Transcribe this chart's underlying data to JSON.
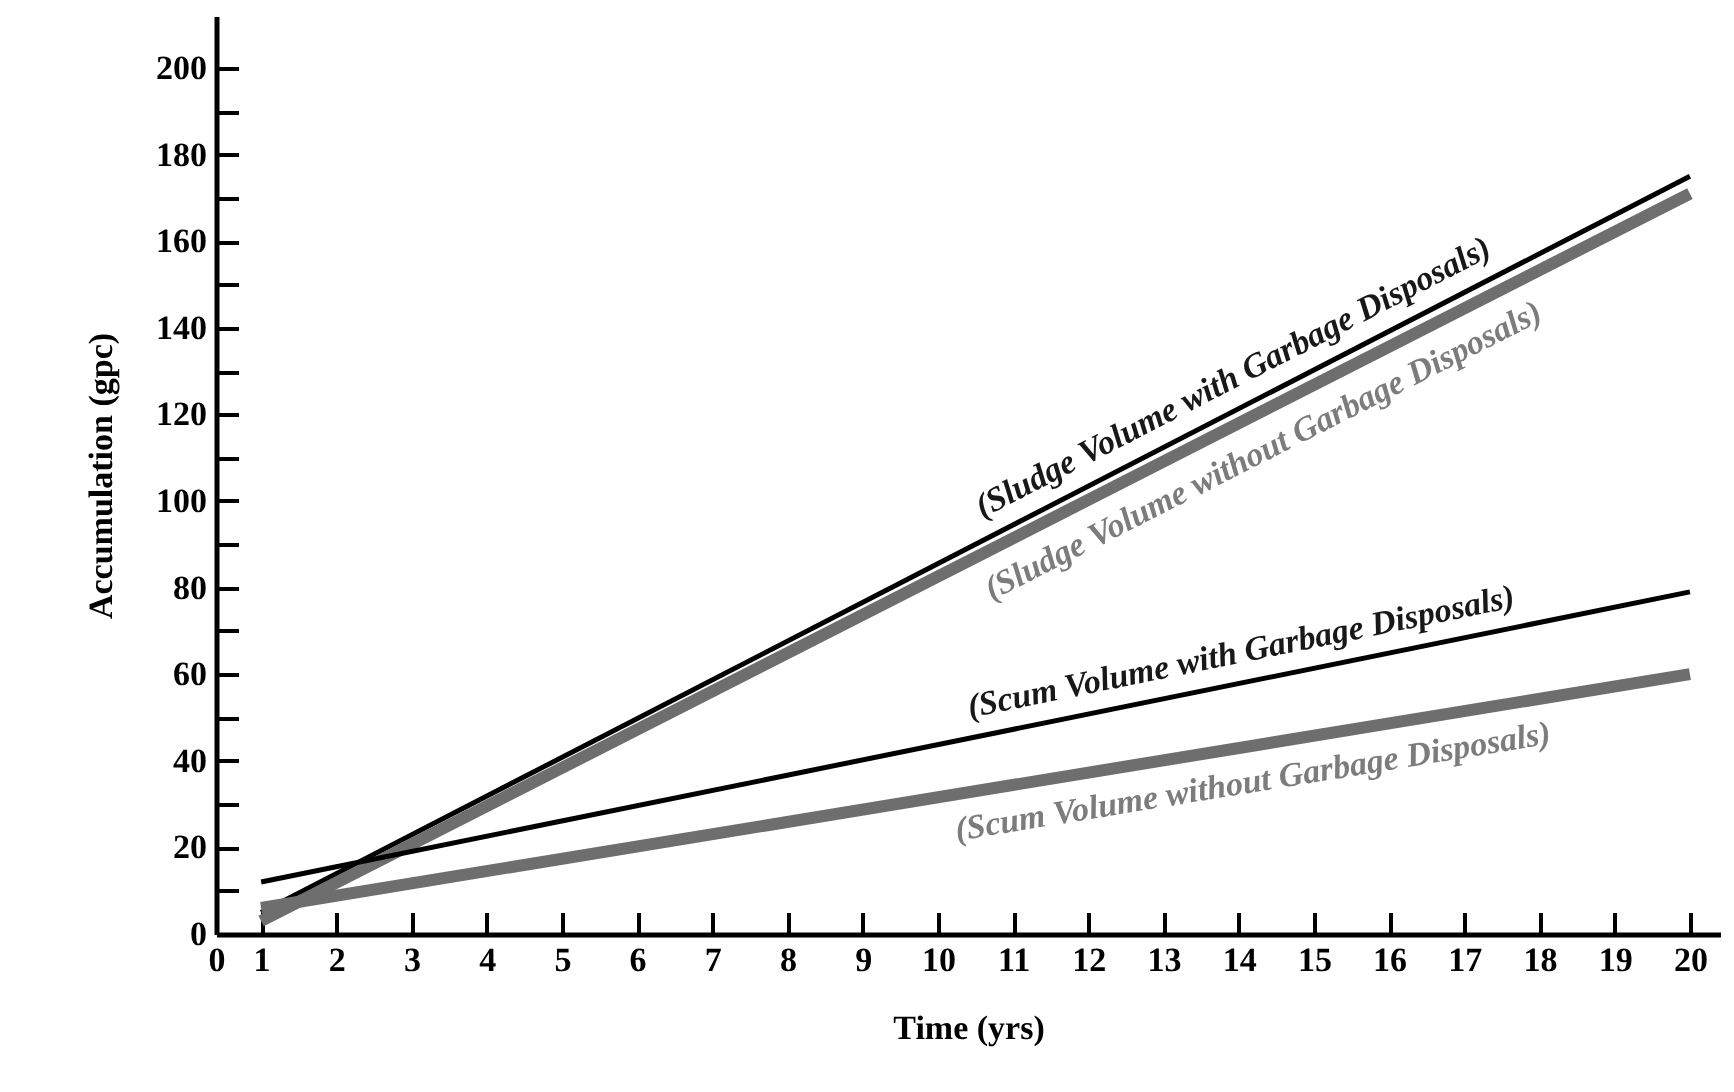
{
  "chart_data": {
    "type": "line",
    "xlabel": "Time (yrs)",
    "ylabel": "Accumulation (gpc)",
    "x": [
      1,
      20
    ],
    "series": [
      {
        "color": "#000000",
        "values": [
          5,
          175
        ]
      },
      {
        "color": "#6e6e6e",
        "values": [
          3,
          171
        ]
      },
      {
        "color": "#000000",
        "values": [
          12,
          79
        ]
      },
      {
        "color": "#6e6e6e",
        "values": [
          6,
          60
        ]
      }
    ],
    "annotations": [
      "(Sludge Volume with Garbage Disposals)",
      "(Sludge Volume without Garbage Disposals)",
      "(Scum Volume with Garbage Disposals)",
      "(Scum Volume without Garbage Disposals)"
    ],
    "xlim": [
      0.4,
      20.4
    ],
    "xticks": [
      {
        "value": 0.4,
        "label": "0"
      },
      1,
      2,
      3,
      4,
      5,
      6,
      7,
      8,
      9,
      10,
      11,
      12,
      13,
      14,
      15,
      16,
      17,
      18,
      19,
      20
    ],
    "ylim": [
      0,
      212
    ],
    "yticks": [
      0,
      {
        "value": 10,
        "label": null
      },
      20,
      {
        "value": 30,
        "label": null
      },
      40,
      {
        "value": 50,
        "label": null
      },
      60,
      {
        "value": 70,
        "label": null
      },
      80,
      {
        "value": 90,
        "label": null
      },
      100,
      {
        "value": 110,
        "label": null
      },
      120,
      {
        "value": 130,
        "label": null
      },
      140,
      {
        "value": 150,
        "label": null
      },
      160,
      {
        "value": 170,
        "label": null
      },
      180,
      {
        "value": 190,
        "label": null
      },
      200
    ],
    "grid": false,
    "legend": false,
    "marker": "none",
    "line_style": "solid"
  }
}
